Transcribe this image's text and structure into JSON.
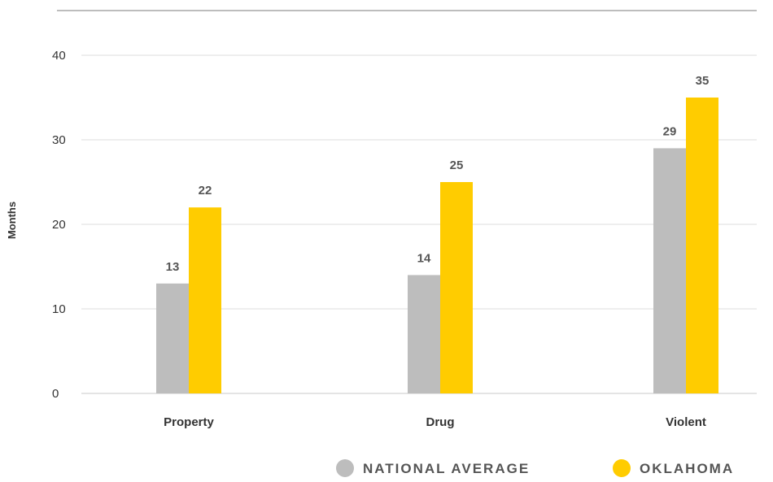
{
  "chart_data": {
    "type": "bar",
    "title": "",
    "xlabel": "",
    "ylabel": "Months",
    "ylim": [
      0,
      40
    ],
    "yticks": [
      0,
      10,
      20,
      30,
      40
    ],
    "grid": true,
    "legend_position": "bottom-right",
    "categories": [
      "Property",
      "Drug",
      "Violent"
    ],
    "series": [
      {
        "name": "NATIONAL AVERAGE",
        "color": "#bdbdbd",
        "values": [
          13,
          14,
          29
        ]
      },
      {
        "name": "OKLAHOMA",
        "color": "#ffcc00",
        "values": [
          22,
          25,
          35
        ]
      }
    ]
  }
}
